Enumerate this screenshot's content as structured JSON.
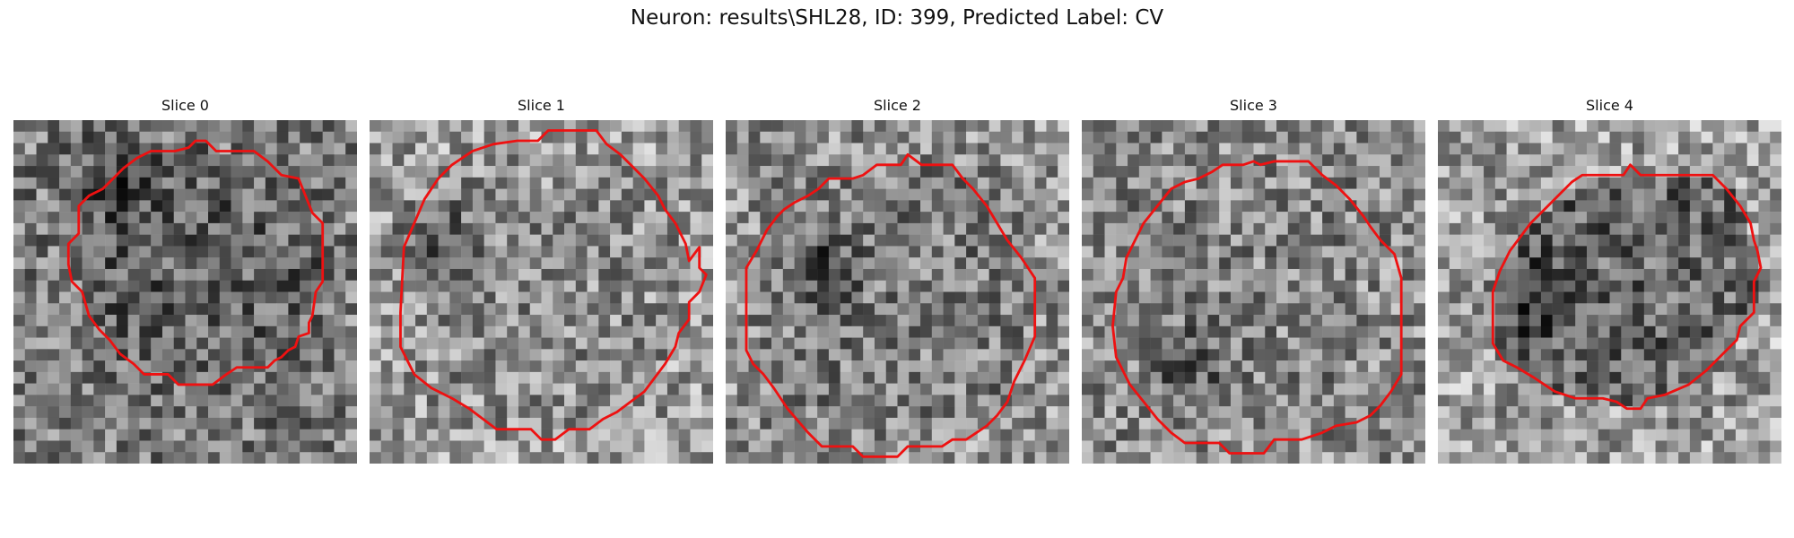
{
  "title": "Neuron: results\\SHL28, ID: 399, Predicted Label: CV",
  "slices": [
    {
      "title": "Slice 0",
      "image": {
        "seed": 11,
        "mean": 0.44,
        "dark_spot": [
          0.3,
          0.15
        ],
        "inner_shade": -0.06
      },
      "contour": [
        [
          0.56,
          0.06
        ],
        [
          0.59,
          0.09
        ],
        [
          0.7,
          0.09
        ],
        [
          0.74,
          0.12
        ],
        [
          0.78,
          0.16
        ],
        [
          0.83,
          0.17
        ],
        [
          0.85,
          0.22
        ],
        [
          0.87,
          0.27
        ],
        [
          0.9,
          0.3
        ],
        [
          0.9,
          0.47
        ],
        [
          0.88,
          0.5
        ],
        [
          0.87,
          0.57
        ],
        [
          0.86,
          0.59
        ],
        [
          0.86,
          0.62
        ],
        [
          0.83,
          0.63
        ],
        [
          0.82,
          0.66
        ],
        [
          0.8,
          0.67
        ],
        [
          0.78,
          0.69
        ],
        [
          0.76,
          0.7
        ],
        [
          0.74,
          0.72
        ],
        [
          0.65,
          0.72
        ],
        [
          0.62,
          0.74
        ],
        [
          0.58,
          0.77
        ],
        [
          0.48,
          0.77
        ],
        [
          0.45,
          0.74
        ],
        [
          0.38,
          0.74
        ],
        [
          0.35,
          0.71
        ],
        [
          0.31,
          0.68
        ],
        [
          0.28,
          0.64
        ],
        [
          0.25,
          0.61
        ],
        [
          0.22,
          0.57
        ],
        [
          0.2,
          0.5
        ],
        [
          0.17,
          0.47
        ],
        [
          0.16,
          0.42
        ],
        [
          0.16,
          0.36
        ],
        [
          0.19,
          0.33
        ],
        [
          0.19,
          0.25
        ],
        [
          0.22,
          0.22
        ],
        [
          0.26,
          0.2
        ],
        [
          0.29,
          0.17
        ],
        [
          0.32,
          0.14
        ],
        [
          0.36,
          0.11
        ],
        [
          0.4,
          0.09
        ],
        [
          0.47,
          0.09
        ],
        [
          0.51,
          0.08
        ],
        [
          0.53,
          0.06
        ]
      ]
    },
    {
      "title": "Slice 1",
      "image": {
        "seed": 23,
        "mean": 0.57,
        "dark_spot": [
          0.19,
          0.34
        ],
        "inner_shade": -0.02
      },
      "contour": [
        [
          0.52,
          0.03
        ],
        [
          0.66,
          0.03
        ],
        [
          0.69,
          0.07
        ],
        [
          0.73,
          0.1
        ],
        [
          0.76,
          0.13
        ],
        [
          0.8,
          0.17
        ],
        [
          0.84,
          0.22
        ],
        [
          0.86,
          0.26
        ],
        [
          0.89,
          0.3
        ],
        [
          0.92,
          0.36
        ],
        [
          0.93,
          0.41
        ],
        [
          0.96,
          0.37
        ],
        [
          0.96,
          0.43
        ],
        [
          0.98,
          0.45
        ],
        [
          0.96,
          0.5
        ],
        [
          0.93,
          0.53
        ],
        [
          0.93,
          0.58
        ],
        [
          0.9,
          0.62
        ],
        [
          0.89,
          0.66
        ],
        [
          0.86,
          0.71
        ],
        [
          0.83,
          0.75
        ],
        [
          0.8,
          0.79
        ],
        [
          0.76,
          0.82
        ],
        [
          0.72,
          0.85
        ],
        [
          0.68,
          0.87
        ],
        [
          0.64,
          0.9
        ],
        [
          0.58,
          0.9
        ],
        [
          0.54,
          0.93
        ],
        [
          0.5,
          0.93
        ],
        [
          0.47,
          0.9
        ],
        [
          0.37,
          0.9
        ],
        [
          0.33,
          0.87
        ],
        [
          0.29,
          0.84
        ],
        [
          0.24,
          0.81
        ],
        [
          0.18,
          0.78
        ],
        [
          0.13,
          0.74
        ],
        [
          0.11,
          0.7
        ],
        [
          0.09,
          0.66
        ],
        [
          0.09,
          0.56
        ],
        [
          0.1,
          0.37
        ],
        [
          0.13,
          0.3
        ],
        [
          0.16,
          0.23
        ],
        [
          0.2,
          0.17
        ],
        [
          0.24,
          0.13
        ],
        [
          0.3,
          0.09
        ],
        [
          0.36,
          0.07
        ],
        [
          0.43,
          0.06
        ],
        [
          0.49,
          0.06
        ]
      ]
    },
    {
      "title": "Slice 2",
      "image": {
        "seed": 37,
        "mean": 0.52,
        "dark_spot": [
          0.27,
          0.42
        ],
        "inner_shade": -0.03
      },
      "contour": [
        [
          0.53,
          0.1
        ],
        [
          0.57,
          0.13
        ],
        [
          0.66,
          0.13
        ],
        [
          0.69,
          0.17
        ],
        [
          0.72,
          0.2
        ],
        [
          0.76,
          0.25
        ],
        [
          0.79,
          0.3
        ],
        [
          0.82,
          0.35
        ],
        [
          0.86,
          0.4
        ],
        [
          0.9,
          0.46
        ],
        [
          0.9,
          0.63
        ],
        [
          0.87,
          0.7
        ],
        [
          0.84,
          0.76
        ],
        [
          0.82,
          0.82
        ],
        [
          0.79,
          0.86
        ],
        [
          0.76,
          0.89
        ],
        [
          0.73,
          0.91
        ],
        [
          0.7,
          0.93
        ],
        [
          0.66,
          0.93
        ],
        [
          0.63,
          0.95
        ],
        [
          0.53,
          0.95
        ],
        [
          0.5,
          0.98
        ],
        [
          0.4,
          0.98
        ],
        [
          0.37,
          0.95
        ],
        [
          0.28,
          0.95
        ],
        [
          0.24,
          0.91
        ],
        [
          0.18,
          0.84
        ],
        [
          0.14,
          0.78
        ],
        [
          0.11,
          0.74
        ],
        [
          0.08,
          0.71
        ],
        [
          0.06,
          0.67
        ],
        [
          0.06,
          0.43
        ],
        [
          0.09,
          0.38
        ],
        [
          0.12,
          0.32
        ],
        [
          0.15,
          0.28
        ],
        [
          0.17,
          0.26
        ],
        [
          0.2,
          0.24
        ],
        [
          0.24,
          0.22
        ],
        [
          0.27,
          0.2
        ],
        [
          0.3,
          0.17
        ],
        [
          0.37,
          0.17
        ],
        [
          0.4,
          0.16
        ],
        [
          0.44,
          0.13
        ],
        [
          0.51,
          0.13
        ]
      ]
    },
    {
      "title": "Slice 3",
      "image": {
        "seed": 53,
        "mean": 0.5,
        "dark_spot": [
          0.3,
          0.72
        ],
        "inner_shade": 0.02
      },
      "contour": [
        [
          0.56,
          0.12
        ],
        [
          0.66,
          0.12
        ],
        [
          0.7,
          0.16
        ],
        [
          0.74,
          0.19
        ],
        [
          0.78,
          0.23
        ],
        [
          0.82,
          0.28
        ],
        [
          0.84,
          0.31
        ],
        [
          0.87,
          0.35
        ],
        [
          0.91,
          0.39
        ],
        [
          0.93,
          0.46
        ],
        [
          0.93,
          0.74
        ],
        [
          0.9,
          0.79
        ],
        [
          0.87,
          0.83
        ],
        [
          0.84,
          0.86
        ],
        [
          0.8,
          0.88
        ],
        [
          0.74,
          0.89
        ],
        [
          0.7,
          0.91
        ],
        [
          0.64,
          0.93
        ],
        [
          0.56,
          0.93
        ],
        [
          0.53,
          0.97
        ],
        [
          0.43,
          0.97
        ],
        [
          0.4,
          0.94
        ],
        [
          0.3,
          0.94
        ],
        [
          0.26,
          0.91
        ],
        [
          0.22,
          0.87
        ],
        [
          0.18,
          0.82
        ],
        [
          0.14,
          0.77
        ],
        [
          0.12,
          0.73
        ],
        [
          0.1,
          0.69
        ],
        [
          0.09,
          0.6
        ],
        [
          0.1,
          0.5
        ],
        [
          0.12,
          0.46
        ],
        [
          0.13,
          0.4
        ],
        [
          0.15,
          0.36
        ],
        [
          0.18,
          0.3
        ],
        [
          0.22,
          0.25
        ],
        [
          0.26,
          0.2
        ],
        [
          0.3,
          0.18
        ],
        [
          0.34,
          0.17
        ],
        [
          0.38,
          0.15
        ],
        [
          0.41,
          0.13
        ],
        [
          0.47,
          0.13
        ],
        [
          0.5,
          0.12
        ],
        [
          0.52,
          0.13
        ]
      ]
    },
    {
      "title": "Slice 4",
      "image": {
        "seed": 71,
        "mean": 0.58,
        "dark_spot": [
          0.25,
          0.52
        ],
        "inner_shade": -0.18
      },
      "contour": [
        [
          0.56,
          0.13
        ],
        [
          0.59,
          0.16
        ],
        [
          0.8,
          0.16
        ],
        [
          0.84,
          0.2
        ],
        [
          0.88,
          0.25
        ],
        [
          0.91,
          0.3
        ],
        [
          0.92,
          0.35
        ],
        [
          0.93,
          0.38
        ],
        [
          0.94,
          0.43
        ],
        [
          0.92,
          0.47
        ],
        [
          0.92,
          0.56
        ],
        [
          0.88,
          0.6
        ],
        [
          0.87,
          0.64
        ],
        [
          0.84,
          0.67
        ],
        [
          0.81,
          0.7
        ],
        [
          0.78,
          0.73
        ],
        [
          0.73,
          0.77
        ],
        [
          0.66,
          0.8
        ],
        [
          0.61,
          0.81
        ],
        [
          0.59,
          0.84
        ],
        [
          0.55,
          0.84
        ],
        [
          0.52,
          0.82
        ],
        [
          0.48,
          0.81
        ],
        [
          0.4,
          0.81
        ],
        [
          0.34,
          0.79
        ],
        [
          0.28,
          0.75
        ],
        [
          0.23,
          0.72
        ],
        [
          0.19,
          0.7
        ],
        [
          0.16,
          0.65
        ],
        [
          0.16,
          0.5
        ],
        [
          0.18,
          0.44
        ],
        [
          0.21,
          0.38
        ],
        [
          0.24,
          0.34
        ],
        [
          0.27,
          0.3
        ],
        [
          0.31,
          0.26
        ],
        [
          0.35,
          0.22
        ],
        [
          0.39,
          0.18
        ],
        [
          0.42,
          0.16
        ],
        [
          0.54,
          0.16
        ]
      ]
    }
  ],
  "colors": {
    "contour": "#ee1111",
    "text": "#111111",
    "background": "#ffffff"
  }
}
